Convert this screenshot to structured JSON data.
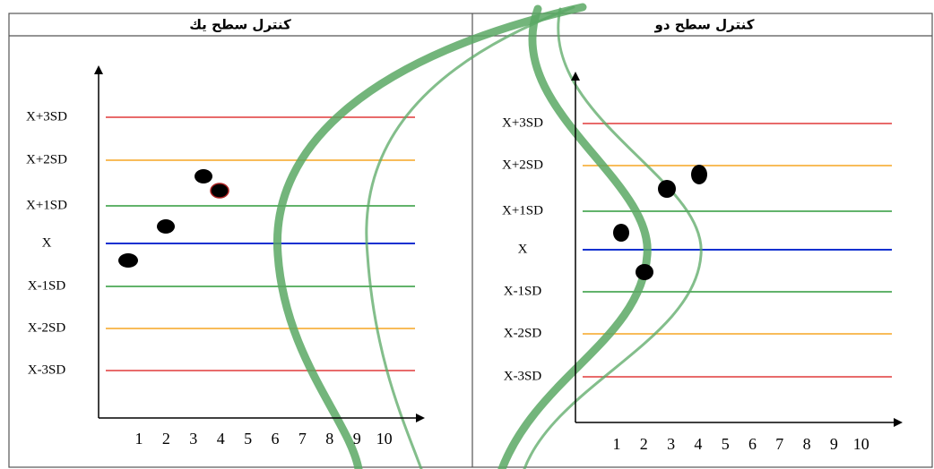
{
  "panels": [
    {
      "title": "كنترل سطح يك",
      "levels": [
        "X+3SD",
        "X+2SD",
        "X+1SD",
        "X",
        "X-1SD",
        "X-2SD",
        "X-3SD"
      ],
      "xlabels": [
        1,
        2,
        3,
        4,
        5,
        6,
        7,
        8,
        9,
        10
      ]
    },
    {
      "title": "كنترل سطح دو",
      "levels": [
        "X+3SD",
        "X+2SD",
        "X+1SD",
        "X",
        "X-1SD",
        "X-2SD",
        "X-3SD"
      ],
      "xlabels": [
        1,
        2,
        3,
        4,
        5,
        6,
        7,
        8,
        9,
        10
      ]
    }
  ]
}
